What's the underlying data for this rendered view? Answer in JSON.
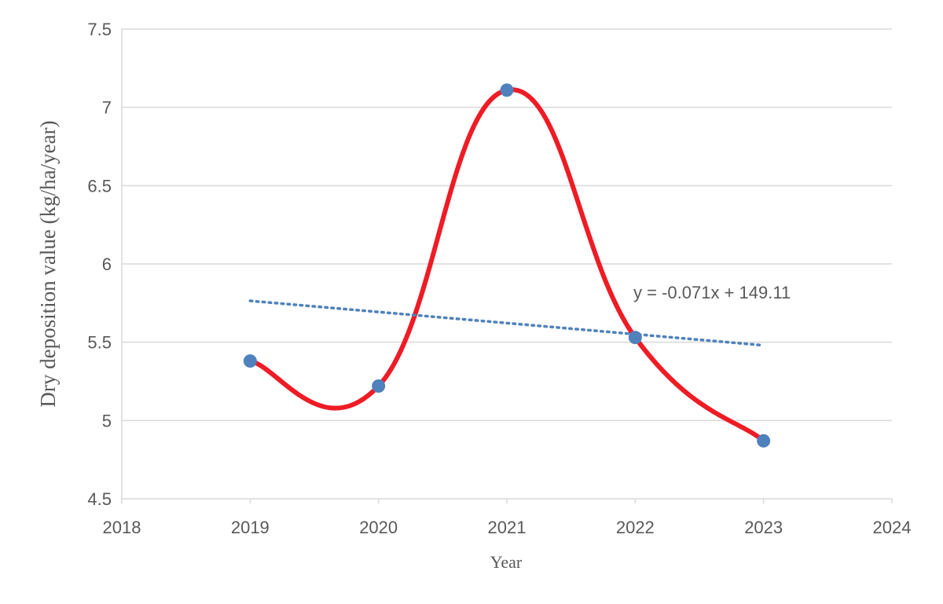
{
  "chart_data": {
    "type": "scatter",
    "title": "",
    "xlabel": "Year",
    "ylabel": "Dry deposition value (kg/ha/year)",
    "xlim": [
      2018,
      2024
    ],
    "ylim": [
      4.5,
      7.5
    ],
    "x_ticks": [
      "2018",
      "2019",
      "2020",
      "2021",
      "2022",
      "2023",
      "2024"
    ],
    "y_ticks": [
      "4.5",
      "5",
      "5.5",
      "6",
      "6.5",
      "7",
      "7.5"
    ],
    "grid": "horizontal",
    "series": [
      {
        "x": [
          2019,
          2020,
          2021,
          2022,
          2023
        ],
        "y": [
          5.38,
          5.22,
          7.11,
          5.53,
          4.87
        ],
        "line": "smooth",
        "line_color": "#ee1c25",
        "marker_color": "#4f81bd"
      }
    ],
    "trendline": {
      "type": "linear",
      "color": "#4f81bd",
      "style": "dotted",
      "x_range": [
        2019,
        2023
      ],
      "equation": "y = -0.071x + 149.11"
    }
  }
}
